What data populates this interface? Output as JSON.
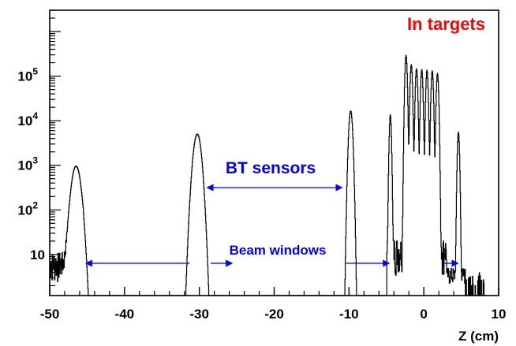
{
  "chart_data": {
    "type": "line",
    "style": "histogram",
    "xlabel": "Z (cm)",
    "ylabel": "",
    "xlim": [
      -50,
      10
    ],
    "ylim": [
      1.2,
      3000000
    ],
    "yscale": "log",
    "grid": false,
    "x_ticks": [
      -50,
      -40,
      -30,
      -20,
      -10,
      0,
      10
    ],
    "x_tick_labels": [
      "-50",
      "-40",
      "-30",
      "-20",
      "-10",
      "0",
      "10"
    ],
    "y_ticks": [
      {
        "value": 10,
        "base": "10",
        "exp": ""
      },
      {
        "value": 100,
        "base": "10",
        "exp": "2"
      },
      {
        "value": 1000,
        "base": "10",
        "exp": "3"
      },
      {
        "value": 10000,
        "base": "10",
        "exp": "4"
      },
      {
        "value": 100000,
        "base": "10",
        "exp": "5"
      }
    ],
    "peaks": [
      {
        "x": -46.5,
        "height": 950,
        "sigma": 0.45
      },
      {
        "x": -30.3,
        "height": 5000,
        "sigma": 0.38
      },
      {
        "x": -9.8,
        "height": 16500,
        "sigma": 0.18
      },
      {
        "x": -4.5,
        "height": 13500,
        "sigma": 0.1
      },
      {
        "x": -2.4,
        "height": 290000,
        "sigma": 0.11
      },
      {
        "x": -1.7,
        "height": 180000,
        "sigma": 0.11
      },
      {
        "x": -1.0,
        "height": 145000,
        "sigma": 0.11
      },
      {
        "x": -0.3,
        "height": 140000,
        "sigma": 0.11
      },
      {
        "x": 0.4,
        "height": 135000,
        "sigma": 0.11
      },
      {
        "x": 1.1,
        "height": 130000,
        "sigma": 0.11
      },
      {
        "x": 1.8,
        "height": 115000,
        "sigma": 0.11
      },
      {
        "x": 4.6,
        "height": 5500,
        "sigma": 0.1
      }
    ],
    "annotations": [
      {
        "text": "In targets",
        "color": "#ff0000"
      },
      {
        "text": "BT sensors",
        "color": "#0000ff"
      },
      {
        "text": "Beam windows",
        "color": "#0000ff"
      }
    ]
  }
}
